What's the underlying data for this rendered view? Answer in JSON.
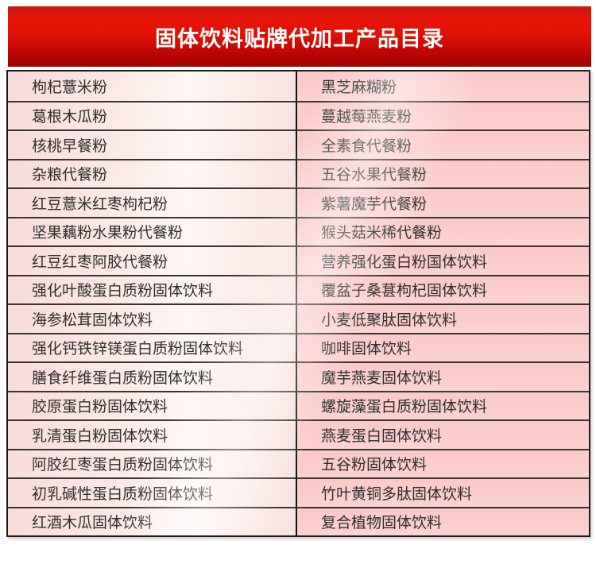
{
  "page": {
    "title": "固体饮料贴牌代加工产品目录"
  },
  "colors": {
    "banner_red_top": "#e81508",
    "banner_red_bottom": "#9d0302",
    "banner_text": "#ffffff",
    "left_cell_pink": "#f8dbd9",
    "right_cell_pink": "#fbc8c8",
    "border_dark": "#1c1c1c",
    "row_border": "#3b3434",
    "cell_text": "#2f2f2f"
  },
  "catalog": {
    "rows": [
      {
        "left": "枸杞薏米粉",
        "right": "黑芝麻糊粉"
      },
      {
        "left": "葛根木瓜粉",
        "right": "蔓越莓燕麦粉"
      },
      {
        "left": "核桃早餐粉",
        "right": "全素食代餐粉"
      },
      {
        "left": "杂粮代餐粉",
        "right": "五谷水果代餐粉"
      },
      {
        "left": "红豆薏米红枣枸杞粉",
        "right": "紫薯魔芋代餐粉"
      },
      {
        "left": "坚果藕粉水果粉代餐粉",
        "right": "猴头菇米稀代餐粉"
      },
      {
        "left": "红豆红枣阿胶代餐粉",
        "right": "营养强化蛋白粉国体饮料"
      },
      {
        "left": "强化叶酸蛋白质粉固体饮料",
        "right": "覆盆子桑葚枸杞固体饮料"
      },
      {
        "left": "海参松茸固体饮料",
        "right": "小麦低聚肽固体饮料"
      },
      {
        "left": "强化钙铁锌镁蛋白质粉固体饮料",
        "right": "咖啡固体饮料"
      },
      {
        "left": "膳食纤维蛋白质粉固体饮料",
        "right": "魔芋燕麦固体饮料"
      },
      {
        "left": "胶原蛋白粉固体饮料",
        "right": "螺旋藻蛋白质粉固体饮料"
      },
      {
        "left": "乳清蛋白粉固体饮料",
        "right": "燕麦蛋白固体饮料"
      },
      {
        "left": "阿胶红枣蛋白质粉固体饮料",
        "right": "五谷粉固体饮料"
      },
      {
        "left": "初乳碱性蛋白质粉固体饮料",
        "right": "竹叶黄铜多肽固体饮料"
      },
      {
        "left": "红酒木瓜固体饮料",
        "right": "复合植物固体饮料"
      }
    ]
  }
}
